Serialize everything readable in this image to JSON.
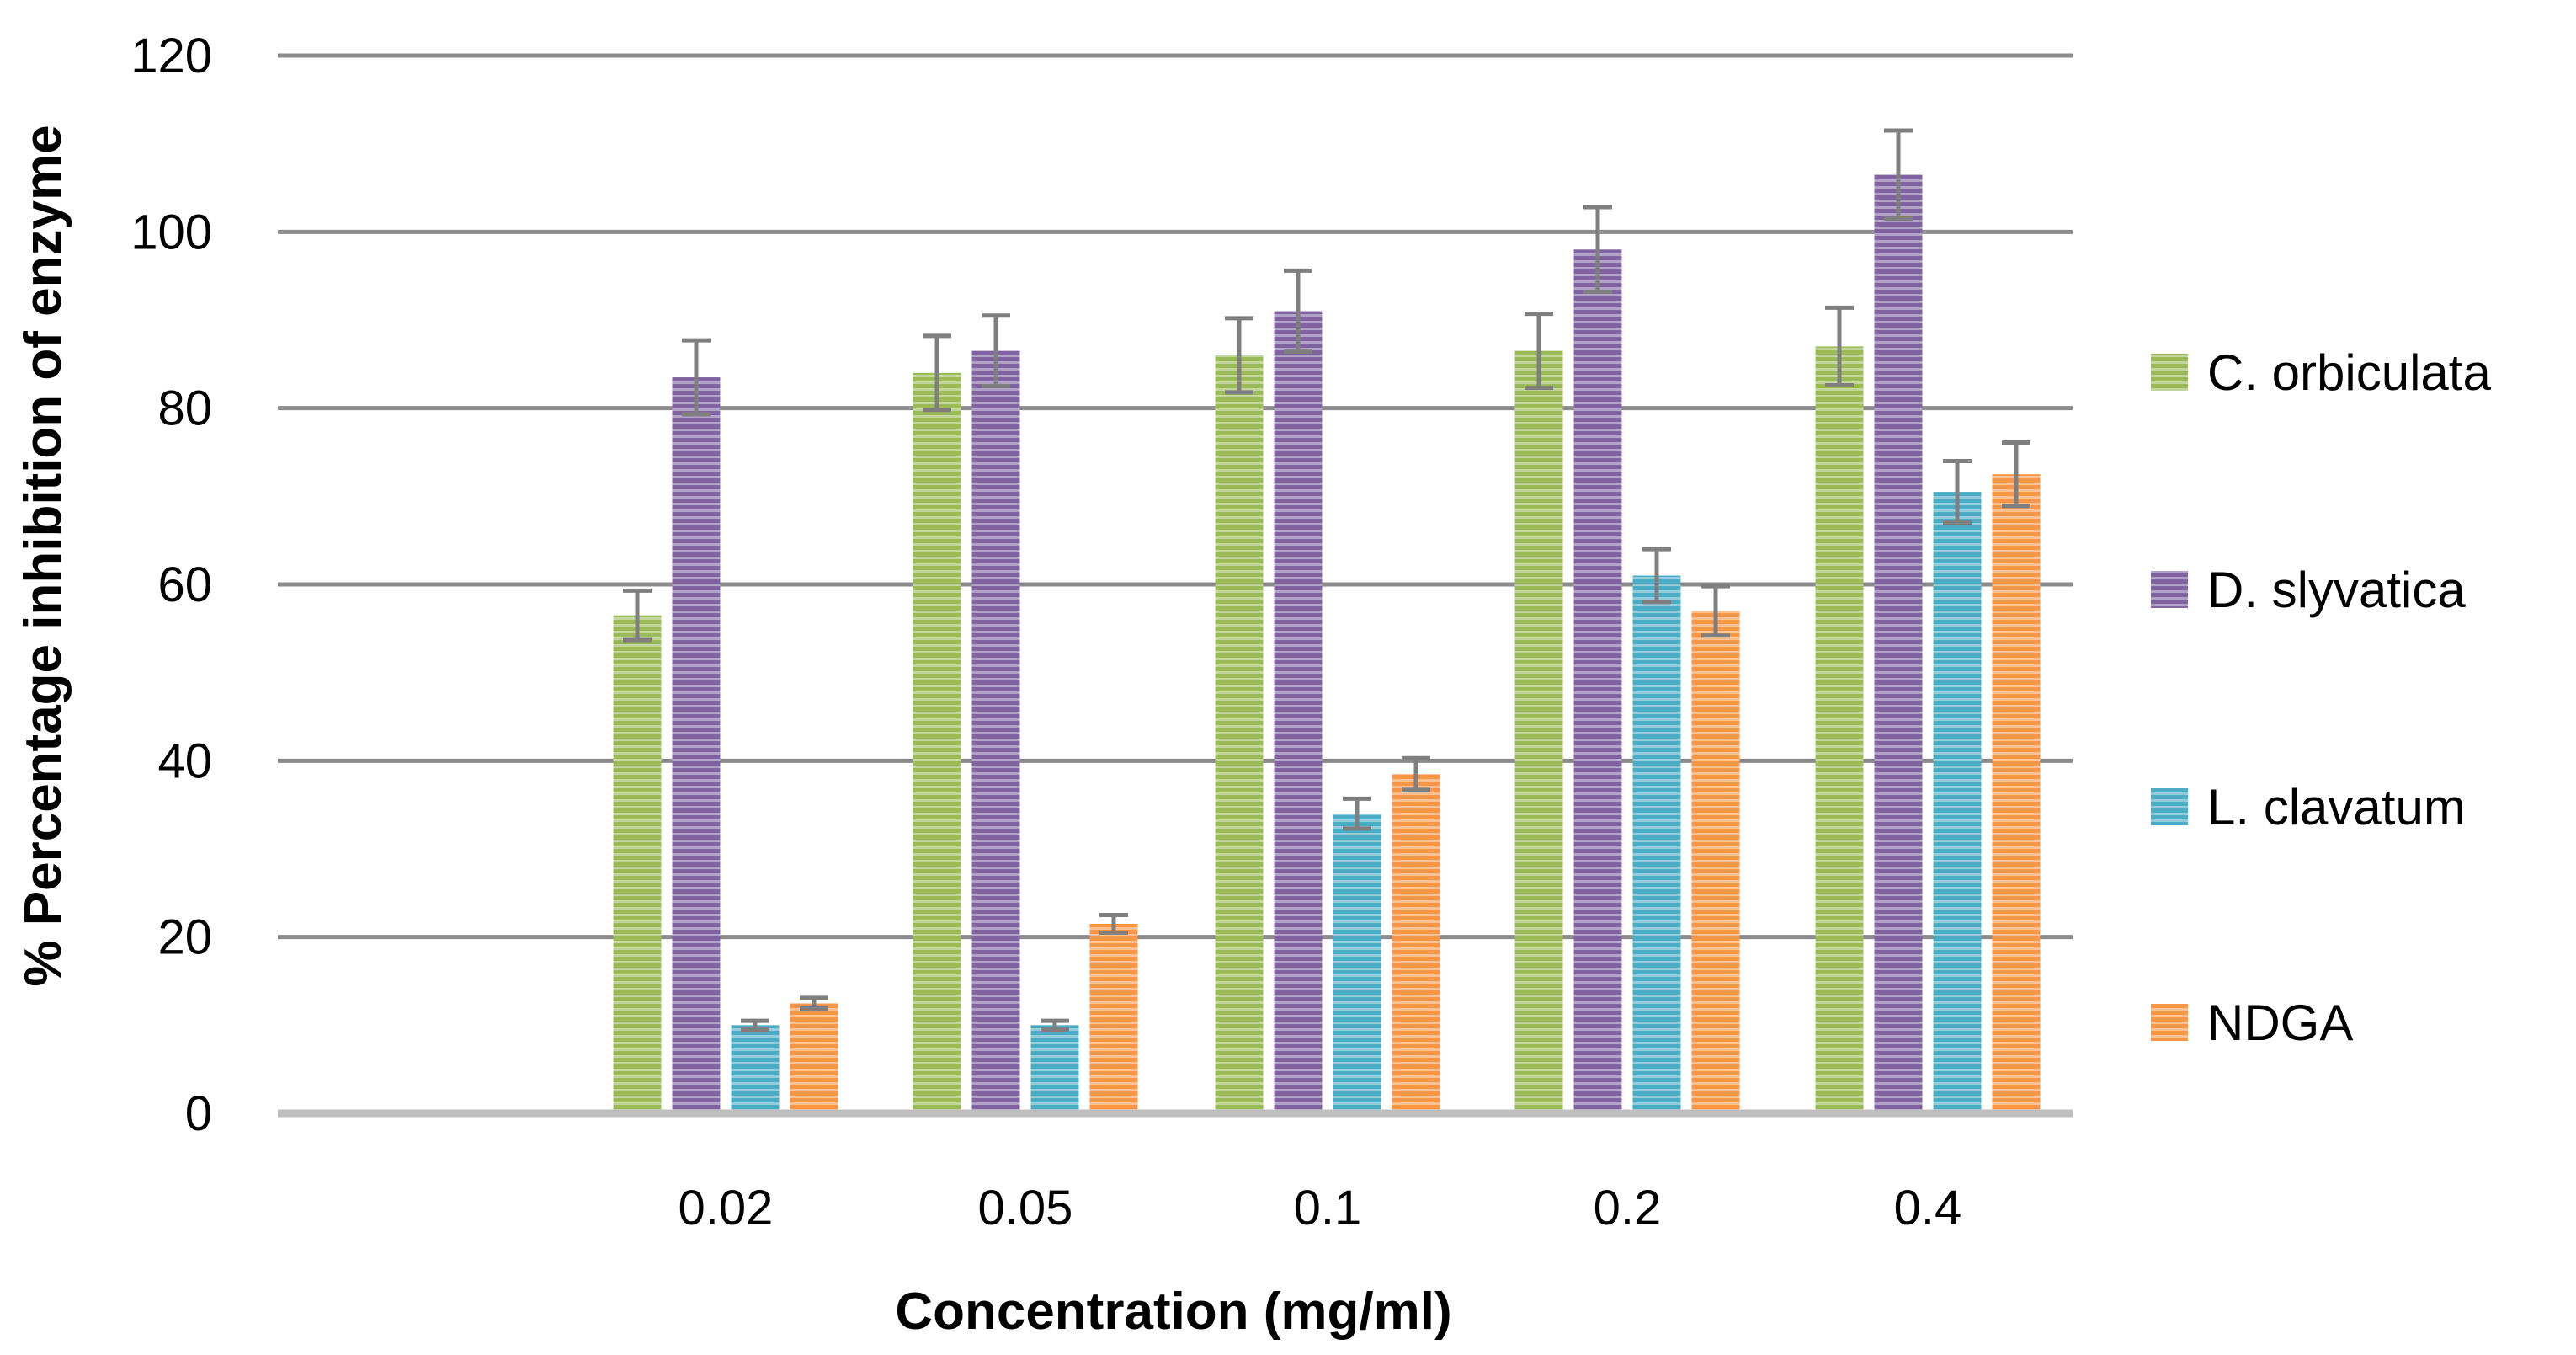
{
  "chart_data": {
    "type": "bar",
    "title": "",
    "xlabel": "Concentration (mg/ml)",
    "ylabel": "% Percentage inhibition of enzyme",
    "ylim": [
      0,
      120
    ],
    "yticks": [
      0,
      20,
      40,
      60,
      80,
      100,
      120
    ],
    "ytick_labels": [
      "0",
      "20",
      "40",
      "60",
      "80",
      "100",
      "120"
    ],
    "grid": true,
    "legend_position": "right",
    "categories": [
      "0.02",
      "0.05",
      "0.1",
      "0.2",
      "0.4"
    ],
    "series": [
      {
        "name": "C. orbiculata",
        "color": "#9BBB59",
        "values": [
          56.5,
          84,
          86,
          86.5,
          87
        ],
        "errors": [
          2.8,
          4.2,
          4.2,
          4.2,
          4.4
        ]
      },
      {
        "name": "D. slyvatica",
        "color": "#8064A2",
        "values": [
          83.5,
          86.5,
          91,
          98,
          106.5
        ],
        "errors": [
          4.2,
          4.0,
          4.6,
          4.8,
          5.0
        ]
      },
      {
        "name": "L. clavatum",
        "color": "#4BACC6",
        "values": [
          10,
          10,
          34,
          61,
          70.5
        ],
        "errors": [
          0.5,
          0.5,
          1.7,
          3.0,
          3.5
        ]
      },
      {
        "name": "NDGA",
        "color": "#F79646",
        "values": [
          12.5,
          21.5,
          38.5,
          57,
          72.5
        ],
        "errors": [
          0.6,
          1.0,
          1.8,
          2.8,
          3.6
        ]
      }
    ]
  }
}
